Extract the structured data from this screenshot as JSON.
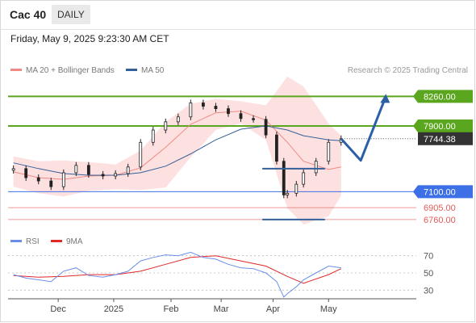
{
  "header": {
    "title": "Cac 40",
    "period": "DAILY"
  },
  "datetime": "Friday, May 9, 2025 9:23:30 AM CET",
  "credit": "Research © 2025 Trading Central",
  "colors": {
    "ma20": "#f08a85",
    "ma50": "#34609a",
    "band_fill": "#fde0e0",
    "resistance": "#5aa61e",
    "support": "#3d6fe6",
    "support_low": "#e55a5a",
    "candle": "#222222",
    "arrow": "#2d5fa6",
    "rsi": "#6a8ee8",
    "rsi_ma": "#e02828",
    "last_price": "#333333"
  },
  "chart_data": [
    {
      "type": "line",
      "subtype": "candlestick",
      "y_scale": "linear",
      "ylim": [
        6700,
        8450
      ],
      "grid": false,
      "legend": "top-left",
      "legend_entries": [
        {
          "name": "MA 20 + Bollinger Bands",
          "color": "#f08a85"
        },
        {
          "name": "MA 50",
          "color": "#34609a"
        }
      ],
      "x_tick_labels": [
        "Dec",
        "2025",
        "Feb",
        "Mar",
        "Apr",
        "May"
      ],
      "x_tick_dates": [
        "2024-12-02",
        "2025-01-02",
        "2025-02-03",
        "2025-03-03",
        "2025-04-01",
        "2025-05-02"
      ],
      "x_range": [
        "2024-11-04",
        "2025-06-20"
      ],
      "levels": [
        {
          "value": 8260.0,
          "label": "8260.00",
          "kind": "resistance"
        },
        {
          "value": 7900.0,
          "label": "7900.00",
          "kind": "resistance"
        },
        {
          "value": 7744.38,
          "label": "7744.38",
          "kind": "last_price"
        },
        {
          "value": 7100.0,
          "label": "7100.00",
          "kind": "support"
        },
        {
          "value": 6905.0,
          "label": "6905.00",
          "kind": "support_low"
        },
        {
          "value": 6760.0,
          "label": "6760.00",
          "kind": "support_low"
        }
      ],
      "close_series": {
        "name": "Cac 40",
        "x": [
          "2024-11-07",
          "2024-11-14",
          "2024-11-21",
          "2024-11-28",
          "2024-12-05",
          "2024-12-12",
          "2024-12-19",
          "2024-12-27",
          "2025-01-03",
          "2025-01-10",
          "2025-01-17",
          "2025-01-24",
          "2025-01-31",
          "2025-02-07",
          "2025-02-14",
          "2025-02-21",
          "2025-02-28",
          "2025-03-07",
          "2025-03-14",
          "2025-03-21",
          "2025-03-28",
          "2025-04-03",
          "2025-04-07",
          "2025-04-09",
          "2025-04-14",
          "2025-04-18",
          "2025-04-25",
          "2025-05-02",
          "2025-05-09"
        ],
        "y": [
          7380,
          7270,
          7230,
          7160,
          7330,
          7420,
          7310,
          7290,
          7320,
          7400,
          7700,
          7850,
          7950,
          8010,
          8180,
          8140,
          8110,
          8050,
          7990,
          7980,
          7790,
          7470,
          7060,
          7080,
          7190,
          7330,
          7470,
          7700,
          7744
        ]
      },
      "ma20": {
        "name": "MA 20",
        "x": [
          "2024-11-07",
          "2024-11-21",
          "2024-12-05",
          "2024-12-19",
          "2025-01-03",
          "2025-01-17",
          "2025-01-31",
          "2025-02-14",
          "2025-02-28",
          "2025-03-14",
          "2025-03-28",
          "2025-04-09",
          "2025-04-18",
          "2025-05-02",
          "2025-05-09"
        ],
        "y": [
          7340,
          7270,
          7250,
          7290,
          7300,
          7390,
          7640,
          7920,
          8060,
          8080,
          7970,
          7700,
          7470,
          7370,
          7400
        ]
      },
      "ma50": {
        "name": "MA 50",
        "x": [
          "2024-11-07",
          "2024-11-21",
          "2024-12-05",
          "2024-12-19",
          "2025-01-03",
          "2025-01-17",
          "2025-01-31",
          "2025-02-14",
          "2025-02-28",
          "2025-03-14",
          "2025-03-28",
          "2025-04-09",
          "2025-04-18",
          "2025-05-02",
          "2025-05-09"
        ],
        "y": [
          7450,
          7380,
          7320,
          7300,
          7300,
          7330,
          7410,
          7560,
          7730,
          7860,
          7900,
          7850,
          7780,
          7730,
          7720
        ]
      },
      "bollinger_upper": {
        "x": [
          "2024-11-07",
          "2024-11-21",
          "2024-12-05",
          "2024-12-19",
          "2025-01-03",
          "2025-01-17",
          "2025-01-31",
          "2025-02-14",
          "2025-02-28",
          "2025-03-14",
          "2025-03-28",
          "2025-04-09",
          "2025-04-18",
          "2025-05-02",
          "2025-05-09"
        ],
        "y": [
          7530,
          7470,
          7480,
          7460,
          7430,
          7600,
          7950,
          8170,
          8230,
          8200,
          8150,
          8500,
          8380,
          7930,
          7780
        ]
      },
      "bollinger_lower": {
        "x": [
          "2024-11-07",
          "2024-11-21",
          "2024-12-05",
          "2024-12-19",
          "2025-01-03",
          "2025-01-17",
          "2025-01-31",
          "2025-02-14",
          "2025-02-28",
          "2025-03-14",
          "2025-03-28",
          "2025-04-09",
          "2025-04-18",
          "2025-05-02",
          "2025-05-09"
        ],
        "y": [
          7160,
          7080,
          7040,
          7110,
          7130,
          7120,
          7150,
          7520,
          7850,
          7930,
          7730,
          6900,
          6700,
          6800,
          7050
        ]
      },
      "annotations": [
        {
          "kind": "range",
          "value": 7380,
          "from": "2025-03-26",
          "to": "2025-04-30"
        },
        {
          "kind": "range",
          "value": 6760,
          "from": "2025-03-26",
          "to": "2025-04-30"
        },
        {
          "kind": "forecast_arrow",
          "x": [
            "2025-05-09",
            "2025-05-20",
            "2025-06-03"
          ],
          "y": [
            7744,
            7480,
            8260
          ]
        }
      ]
    },
    {
      "type": "line",
      "subtype": "indicator",
      "ylim": [
        20,
        80
      ],
      "tick_labels": [
        "70",
        "50",
        "30"
      ],
      "tick_values": [
        70,
        50,
        30
      ],
      "legend_entries": [
        {
          "name": "RSI",
          "color": "#6a8ee8"
        },
        {
          "name": "9MA",
          "color": "#e02828"
        }
      ],
      "series": [
        {
          "name": "RSI",
          "x": [
            "2024-11-07",
            "2024-11-14",
            "2024-11-21",
            "2024-11-28",
            "2024-12-05",
            "2024-12-12",
            "2024-12-19",
            "2024-12-27",
            "2025-01-03",
            "2025-01-10",
            "2025-01-17",
            "2025-01-24",
            "2025-01-31",
            "2025-02-07",
            "2025-02-14",
            "2025-02-21",
            "2025-02-28",
            "2025-03-07",
            "2025-03-14",
            "2025-03-21",
            "2025-03-28",
            "2025-04-03",
            "2025-04-07",
            "2025-04-09",
            "2025-04-14",
            "2025-04-18",
            "2025-04-25",
            "2025-05-02",
            "2025-05-09"
          ],
          "y": [
            48,
            44,
            42,
            40,
            52,
            56,
            47,
            45,
            48,
            52,
            64,
            68,
            71,
            70,
            74,
            68,
            66,
            60,
            56,
            55,
            50,
            40,
            22,
            26,
            34,
            42,
            50,
            58,
            56
          ]
        },
        {
          "name": "9MA",
          "x": [
            "2024-11-07",
            "2024-11-21",
            "2024-12-05",
            "2024-12-19",
            "2025-01-03",
            "2025-01-17",
            "2025-01-31",
            "2025-02-14",
            "2025-02-28",
            "2025-03-14",
            "2025-03-28",
            "2025-04-09",
            "2025-04-18",
            "2025-05-02",
            "2025-05-09"
          ],
          "y": [
            47,
            45,
            46,
            48,
            48,
            52,
            60,
            68,
            70,
            64,
            58,
            46,
            38,
            48,
            55
          ]
        }
      ]
    }
  ]
}
